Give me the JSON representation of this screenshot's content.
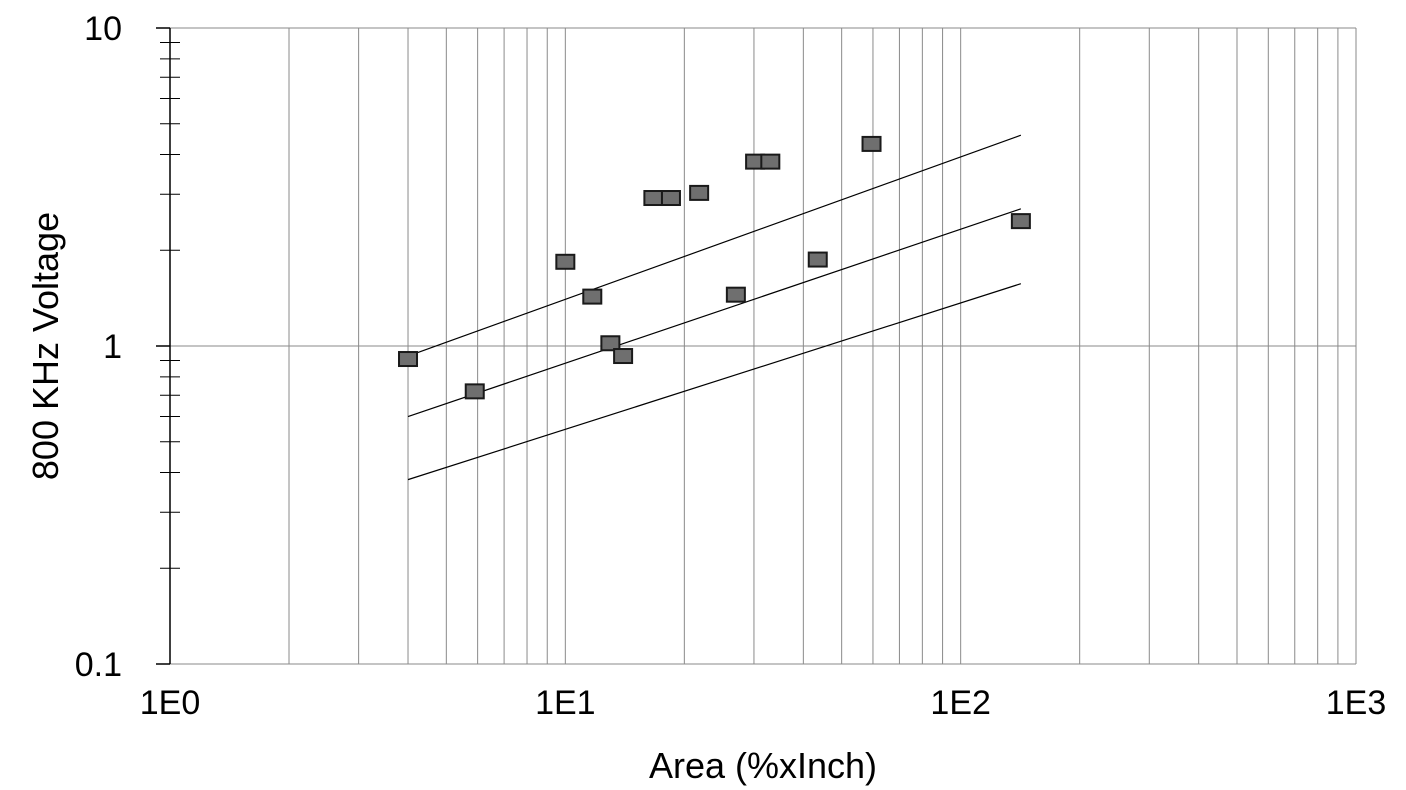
{
  "chart_data": {
    "type": "scatter",
    "title": "",
    "xlabel": "Area (%xInch)",
    "ylabel": "800 KHz Voltage",
    "x_scale": "log",
    "y_scale": "log",
    "xlim": [
      1,
      1000
    ],
    "ylim": [
      0.1,
      10
    ],
    "x_tick_labels": [
      "1E0",
      "1E1",
      "1E2",
      "1E3"
    ],
    "y_tick_labels": [
      "0.1",
      "1",
      "10"
    ],
    "grid": true,
    "legend": "none",
    "marker_color": "#6f6f6f",
    "series": [
      {
        "type": "scatter",
        "points": [
          {
            "x": 4.0,
            "y": 0.91
          },
          {
            "x": 5.9,
            "y": 0.72
          },
          {
            "x": 10.0,
            "y": 1.84
          },
          {
            "x": 11.7,
            "y": 1.43
          },
          {
            "x": 13.0,
            "y": 1.02
          },
          {
            "x": 14.0,
            "y": 0.93
          },
          {
            "x": 16.7,
            "y": 2.92
          },
          {
            "x": 18.5,
            "y": 2.92
          },
          {
            "x": 21.8,
            "y": 3.03
          },
          {
            "x": 27.0,
            "y": 1.45
          },
          {
            "x": 30.2,
            "y": 3.8
          },
          {
            "x": 33.0,
            "y": 3.8
          },
          {
            "x": 43.5,
            "y": 1.87
          },
          {
            "x": 59.5,
            "y": 4.32
          },
          {
            "x": 142.0,
            "y": 2.47
          }
        ]
      },
      {
        "type": "line",
        "points": [
          {
            "x": 4.0,
            "y": 0.93
          },
          {
            "x": 142.0,
            "y": 4.6
          }
        ]
      },
      {
        "type": "line",
        "points": [
          {
            "x": 4.0,
            "y": 0.6
          },
          {
            "x": 142.0,
            "y": 2.7
          }
        ]
      },
      {
        "type": "line",
        "points": [
          {
            "x": 4.0,
            "y": 0.38
          },
          {
            "x": 142.0,
            "y": 1.57
          }
        ]
      }
    ]
  }
}
